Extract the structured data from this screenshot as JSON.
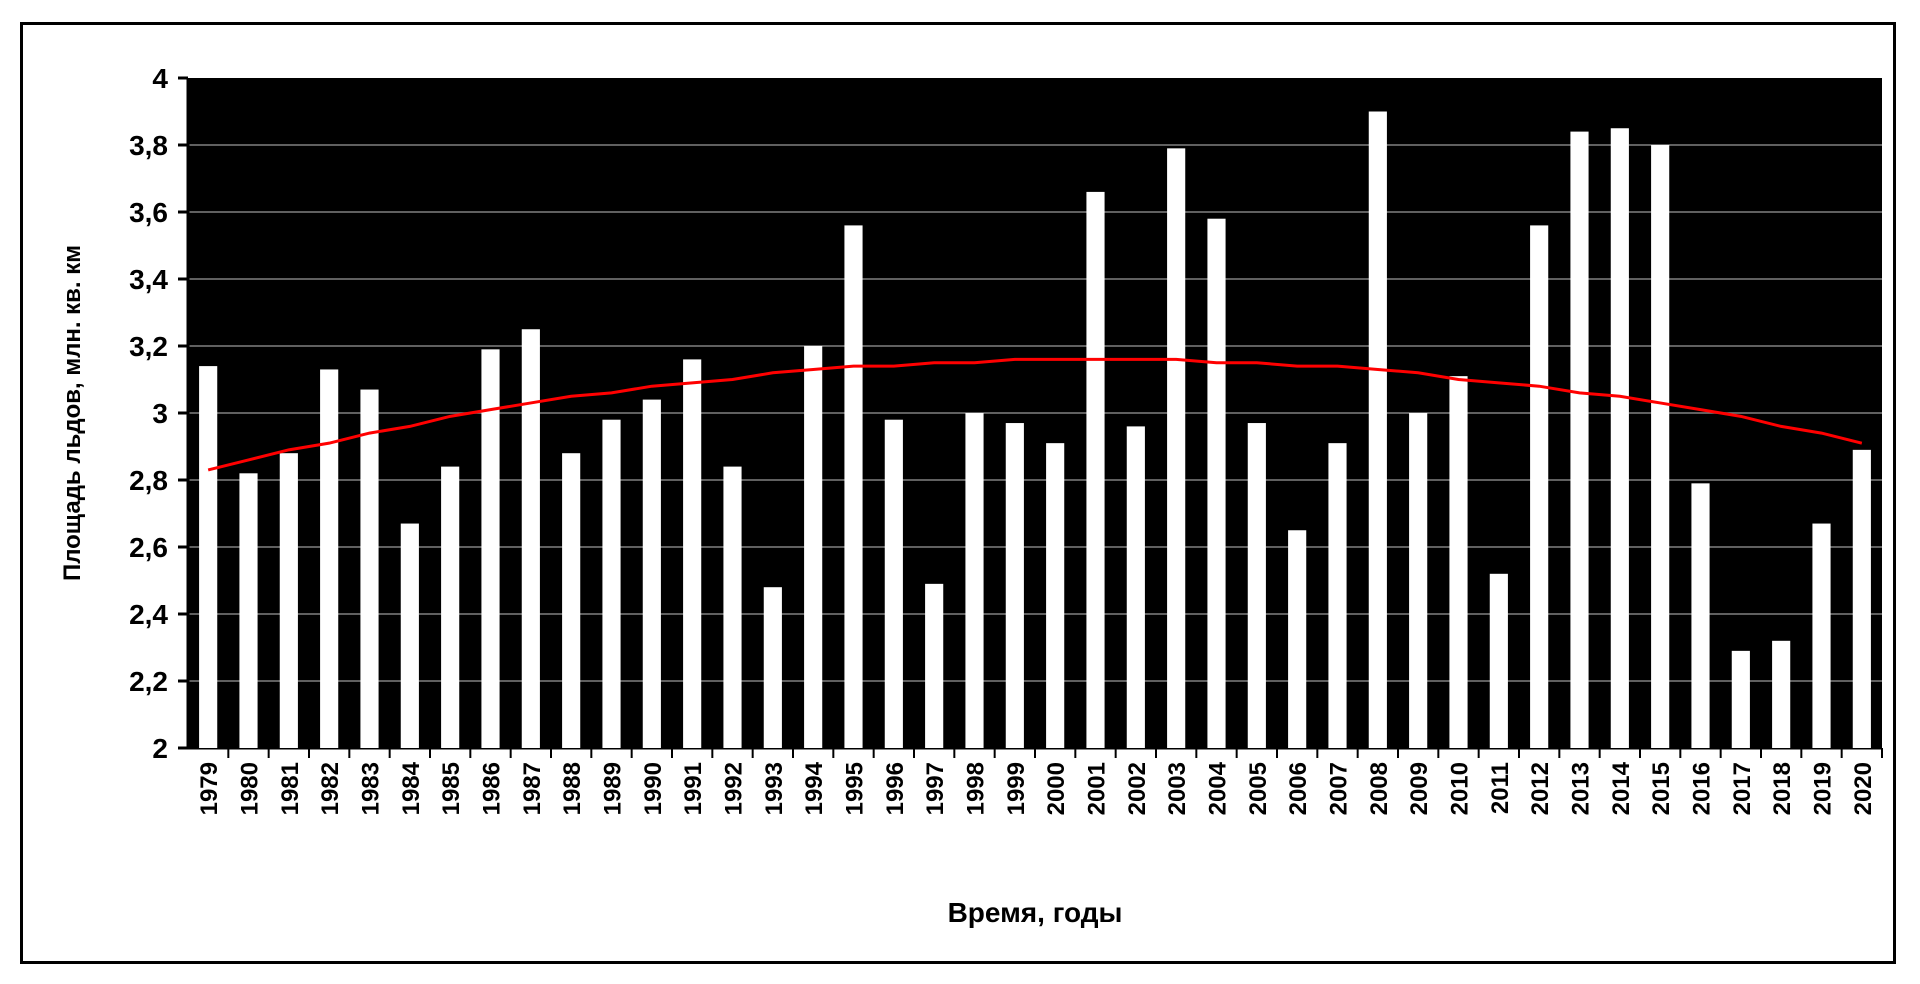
{
  "chart_data": {
    "type": "bar",
    "title": "",
    "xlabel": "Время, годы",
    "ylabel": "Площадь льдов, млн. кв. км",
    "ylim": [
      2,
      4
    ],
    "yticks": [
      "2",
      "2,2",
      "2,4",
      "2,6",
      "2,8",
      "3",
      "3,2",
      "3,4",
      "3,6",
      "3,8",
      "4"
    ],
    "grid": true,
    "colors": {
      "background": "#000000",
      "bars": "#ffffff",
      "trend": "#ff0000",
      "grid": "#808080"
    },
    "categories": [
      "1979",
      "1980",
      "1981",
      "1982",
      "1983",
      "1984",
      "1985",
      "1986",
      "1987",
      "1988",
      "1989",
      "1990",
      "1991",
      "1992",
      "1993",
      "1994",
      "1995",
      "1996",
      "1997",
      "1998",
      "1999",
      "2000",
      "2001",
      "2002",
      "2003",
      "2004",
      "2005",
      "2006",
      "2007",
      "2008",
      "2009",
      "2010",
      "2011",
      "2012",
      "2013",
      "2014",
      "2015",
      "2016",
      "2017",
      "2018",
      "2019",
      "2020"
    ],
    "values": [
      3.14,
      2.82,
      2.88,
      3.13,
      3.07,
      2.67,
      2.84,
      3.19,
      3.25,
      2.88,
      2.98,
      3.04,
      3.16,
      2.84,
      2.48,
      3.2,
      3.56,
      2.98,
      2.49,
      3.0,
      2.97,
      2.91,
      3.66,
      2.96,
      3.79,
      3.58,
      2.97,
      2.65,
      2.91,
      3.9,
      3.0,
      3.11,
      2.52,
      3.56,
      3.84,
      3.85,
      3.8,
      2.79,
      2.29,
      2.32,
      2.67,
      2.89
    ],
    "trend": [
      2.83,
      2.86,
      2.89,
      2.91,
      2.94,
      2.96,
      2.99,
      3.01,
      3.03,
      3.05,
      3.06,
      3.08,
      3.09,
      3.1,
      3.12,
      3.13,
      3.14,
      3.14,
      3.15,
      3.15,
      3.16,
      3.16,
      3.16,
      3.16,
      3.16,
      3.15,
      3.15,
      3.14,
      3.14,
      3.13,
      3.12,
      3.1,
      3.09,
      3.08,
      3.06,
      3.05,
      3.03,
      3.01,
      2.99,
      2.96,
      2.94,
      2.91
    ]
  }
}
